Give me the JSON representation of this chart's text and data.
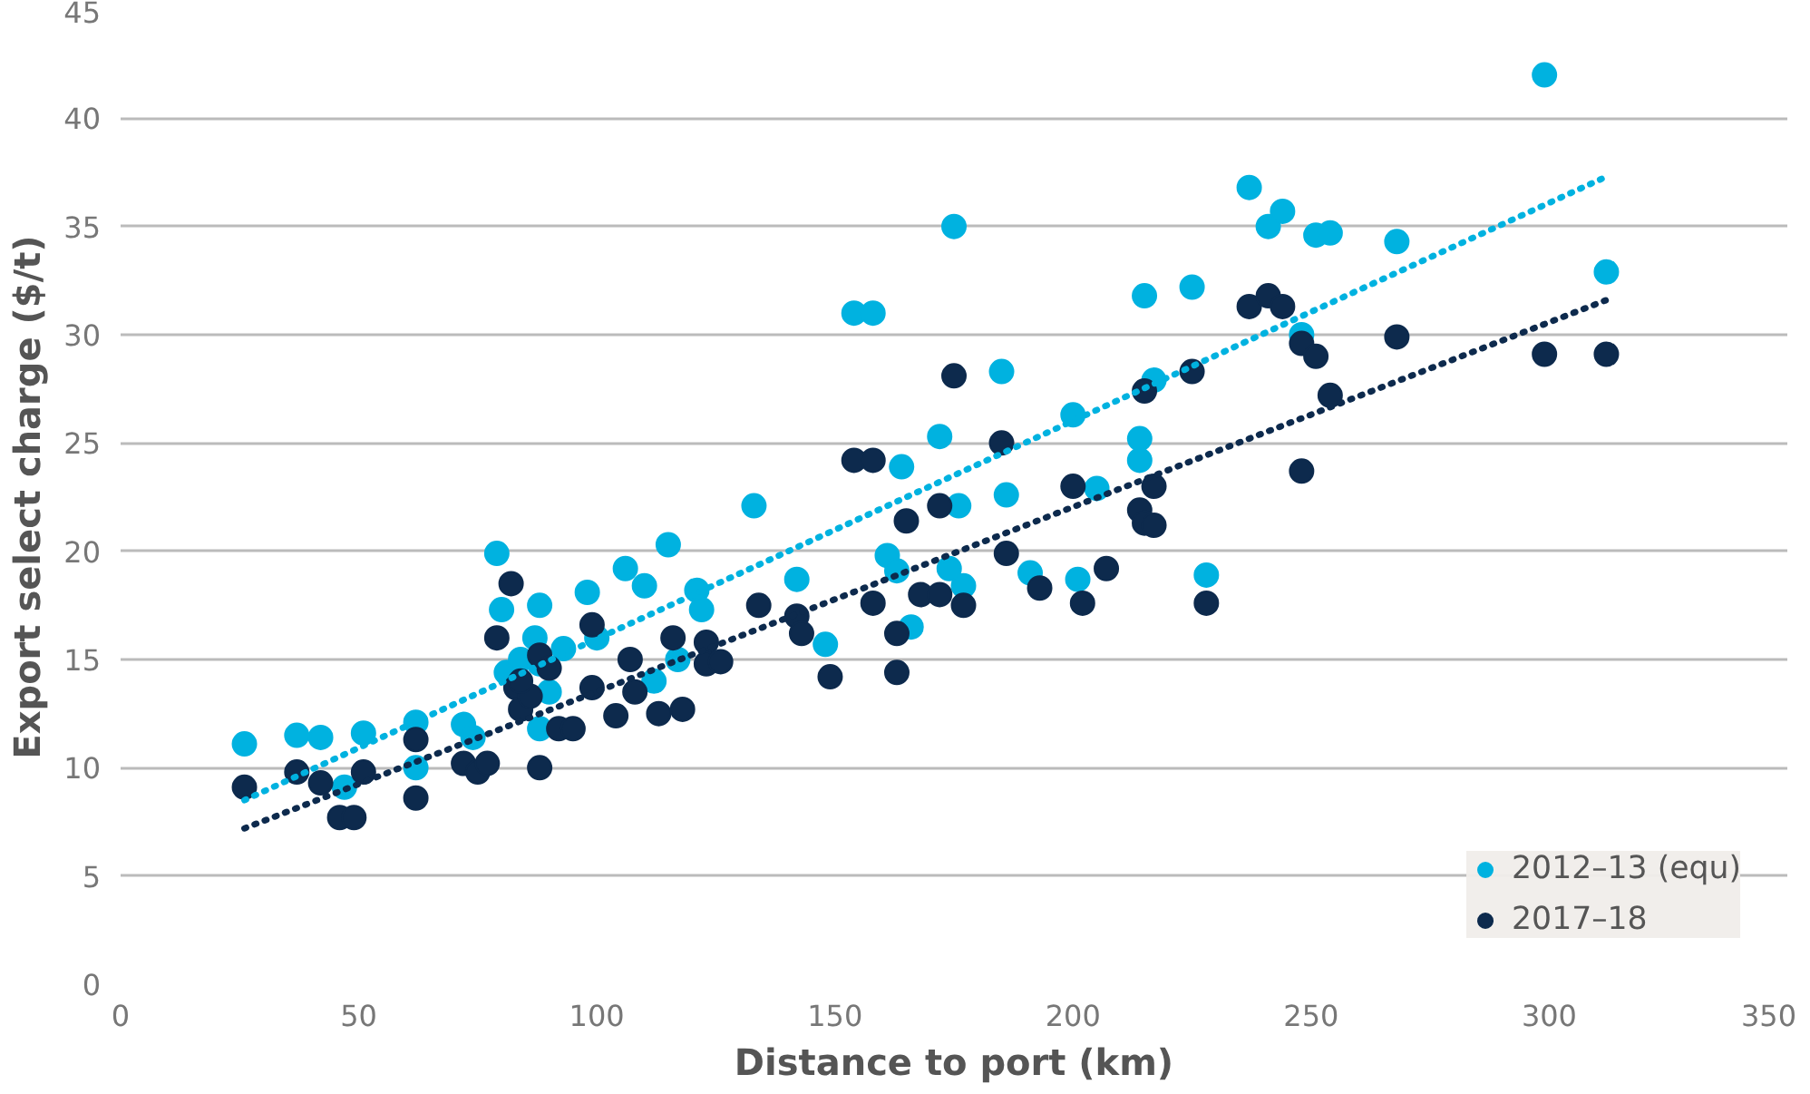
{
  "chart_data": {
    "type": "scatter",
    "xlabel": "Distance to port (km)",
    "ylabel": "Export select charge ($/t)",
    "xlim": [
      0,
      350
    ],
    "xticks": [
      0,
      50,
      100,
      150,
      200,
      250,
      300,
      350
    ],
    "ylim": [
      0,
      45
    ],
    "yticks": [
      0,
      5,
      10,
      15,
      20,
      25,
      30,
      35,
      40,
      45
    ],
    "grid": "y",
    "legend": "bottom right",
    "series": [
      {
        "name": "2012–13 (equ)",
        "color": "#00b2e0",
        "marker": "circle",
        "x": [
          26,
          37,
          42,
          47,
          51,
          62,
          62,
          72,
          74,
          79,
          80,
          81,
          84,
          87,
          88,
          88,
          90,
          93,
          88,
          98,
          100,
          106,
          110,
          112,
          115,
          121,
          122,
          117,
          133,
          142,
          148,
          154,
          158,
          161,
          164,
          163,
          166,
          174,
          172,
          175,
          176,
          177,
          185,
          186,
          191,
          200,
          201,
          205,
          214,
          214,
          215,
          217,
          225,
          228,
          237,
          241,
          244,
          248,
          251,
          254,
          268,
          299,
          312
        ],
        "values": [
          11.1,
          11.5,
          11.4,
          9.1,
          11.6,
          12.1,
          10.0,
          12.0,
          11.4,
          19.9,
          17.3,
          14.4,
          15.0,
          16.0,
          14.8,
          11.8,
          13.5,
          15.5,
          17.5,
          18.1,
          16.0,
          19.2,
          18.4,
          14.0,
          20.3,
          18.2,
          17.3,
          15.0,
          22.1,
          18.7,
          15.7,
          31.0,
          31.0,
          19.8,
          23.9,
          19.1,
          16.5,
          19.2,
          25.3,
          35.0,
          22.1,
          18.4,
          28.3,
          22.6,
          19.0,
          26.3,
          18.7,
          22.9,
          25.2,
          24.2,
          31.8,
          27.9,
          32.2,
          18.9,
          36.8,
          35.0,
          35.7,
          30.0,
          34.6,
          34.7,
          34.3,
          42.0,
          32.9
        ]
      },
      {
        "name": "2017–18",
        "color": "#0d2a4d",
        "marker": "circle",
        "x": [
          26,
          37,
          42,
          46,
          49,
          51,
          62,
          62,
          72,
          75,
          77,
          79,
          82,
          83,
          84,
          86,
          88,
          88,
          90,
          92,
          95,
          84,
          99,
          99,
          104,
          107,
          108,
          113,
          118,
          116,
          123,
          123,
          126,
          134,
          142,
          143,
          149,
          154,
          158,
          158,
          163,
          165,
          163,
          168,
          172,
          175,
          172,
          177,
          185,
          186,
          193,
          200,
          202,
          207,
          214,
          215,
          215,
          217,
          217,
          225,
          228,
          237,
          241,
          244,
          248,
          251,
          254,
          248,
          268,
          299,
          312
        ],
        "values": [
          9.1,
          9.8,
          9.3,
          7.7,
          7.7,
          9.8,
          8.6,
          11.3,
          10.2,
          9.8,
          10.2,
          16.0,
          18.5,
          13.7,
          12.7,
          13.3,
          10.0,
          15.2,
          14.6,
          11.8,
          11.8,
          14.0,
          16.6,
          13.7,
          12.4,
          15.0,
          13.5,
          12.5,
          12.7,
          16.0,
          15.8,
          14.8,
          14.9,
          17.5,
          17.0,
          16.2,
          14.2,
          24.2,
          24.2,
          17.6,
          16.2,
          21.4,
          14.4,
          18.0,
          18.0,
          28.1,
          22.1,
          17.5,
          25.0,
          19.9,
          18.3,
          23.0,
          17.6,
          19.2,
          21.9,
          21.3,
          27.4,
          23.0,
          21.2,
          28.3,
          17.6,
          31.3,
          31.8,
          31.3,
          29.6,
          29.0,
          27.2,
          23.7,
          29.9,
          29.1,
          29.1
        ]
      },
      {
        "type": "line",
        "color": "#00b2e0",
        "line_style": "dotted",
        "x": [
          26,
          312
        ],
        "values": [
          8.5,
          37.3
        ]
      },
      {
        "type": "line",
        "color": "#0d2a4d",
        "line_style": "dotted",
        "x": [
          26,
          312
        ],
        "values": [
          7.2,
          31.6
        ]
      }
    ]
  }
}
